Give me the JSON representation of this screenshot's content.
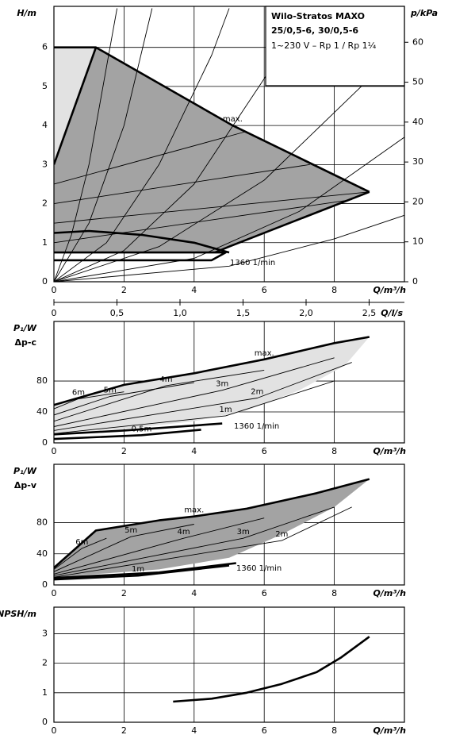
{
  "chart_data": [
    {
      "type": "line",
      "title": "Wilo-Stratos MAXO",
      "subtitle": "25/0,5-6, 30/0,5-6",
      "note": "1~230 V – Rp 1 / Rp 1¼",
      "ylabel": "H/m",
      "y2label": "p/kPa",
      "xlabel": "Q/m³/h",
      "x2label": "Q/l/s",
      "xlim": [
        0,
        10
      ],
      "xticks": [
        0,
        2,
        4,
        6,
        8
      ],
      "ylim": [
        0,
        7.05
      ],
      "yticks": [
        0,
        1,
        2,
        3,
        4,
        5,
        6
      ],
      "y2lim": [
        0,
        69
      ],
      "y2ticks": [
        0,
        10,
        20,
        30,
        40,
        50,
        60
      ],
      "x2lim": [
        0,
        2.78
      ],
      "x2ticks": [
        0,
        {
          "value": 0.5,
          "label": "0,5"
        },
        {
          "value": 1,
          "label": "1,0"
        },
        {
          "value": 1.5,
          "label": "1,5"
        },
        {
          "value": 2,
          "label": "2,0"
        },
        {
          "value": 2.5,
          "label": "2,5"
        }
      ],
      "grid": true,
      "annotations": [
        "1360 1/min"
      ],
      "series": [
        {
          "style": "area",
          "color": "#e2e2e2",
          "x": [
            0,
            1.2,
            0
          ],
          "values": [
            6,
            6,
            3
          ]
        },
        {
          "style": "area",
          "color": "#a3a3a3",
          "x": [
            0,
            1.2,
            5.1,
            9,
            7,
            5,
            4.6,
            0
          ],
          "values": [
            3,
            6,
            4.0,
            2.3,
            1.6,
            0.9,
            0.75,
            0.75
          ]
        },
        {
          "style": "thin",
          "color": "#000000",
          "x": [
            0,
            0.5,
            1,
            1.5,
            1.8
          ],
          "values": [
            0,
            1.2,
            3.0,
            5.5,
            7
          ]
        },
        {
          "style": "thin",
          "color": "#000000",
          "x": [
            0,
            1,
            2,
            2.8
          ],
          "values": [
            0,
            1.5,
            4,
            7
          ]
        },
        {
          "style": "thin",
          "color": "#000000",
          "x": [
            0,
            1.5,
            3,
            4.5,
            5
          ],
          "values": [
            0,
            1,
            3,
            5.8,
            7
          ]
        },
        {
          "style": "thin",
          "color": "#000000",
          "x": [
            0,
            2,
            4,
            6,
            7.2
          ],
          "values": [
            0,
            0.8,
            2.5,
            5.2,
            7
          ]
        },
        {
          "style": "thin",
          "color": "#000000",
          "x": [
            0,
            3,
            6,
            9,
            10
          ],
          "values": [
            0,
            0.9,
            2.6,
            5.2,
            6.3
          ]
        },
        {
          "style": "thin",
          "color": "#000000",
          "x": [
            0,
            4,
            7,
            10
          ],
          "values": [
            0,
            0.6,
            1.8,
            3.7
          ]
        },
        {
          "style": "thin",
          "color": "#000000",
          "x": [
            0,
            5,
            8,
            10
          ],
          "values": [
            0,
            0.4,
            1.1,
            1.7
          ]
        },
        {
          "style": "thin",
          "color": "#000000",
          "x": [
            0,
            5.5
          ],
          "values": [
            2.5,
            3.85
          ]
        },
        {
          "style": "thin",
          "color": "#000000",
          "x": [
            0,
            7.3
          ],
          "values": [
            2.0,
            3.0
          ]
        },
        {
          "style": "thin",
          "color": "#000000",
          "x": [
            0,
            9
          ],
          "values": [
            1.5,
            2.3
          ]
        },
        {
          "style": "thin",
          "color": "#000000",
          "x": [
            0,
            8.5
          ],
          "values": [
            1.0,
            2.1
          ]
        },
        {
          "style": "thick",
          "color": "#000000",
          "name": "max.",
          "x": [
            0,
            1.2,
            5.1,
            9
          ],
          "values": [
            6,
            6,
            4.0,
            2.3
          ]
        },
        {
          "style": "thick",
          "color": "#000000",
          "x": [
            0,
            1.2
          ],
          "values": [
            3,
            6
          ]
        },
        {
          "style": "thick",
          "color": "#000000",
          "x": [
            9,
            7,
            5,
            4.6
          ],
          "values": [
            2.3,
            1.6,
            0.9,
            0.75
          ]
        },
        {
          "style": "thick",
          "color": "#000000",
          "x": [
            0,
            4.9,
            4.5,
            0
          ],
          "values": [
            0.75,
            0.75,
            0.55,
            0.55
          ]
        },
        {
          "style": "thick",
          "color": "#000000",
          "x": [
            0,
            1,
            2.5,
            4,
            5
          ],
          "values": [
            1.25,
            1.3,
            1.2,
            1.0,
            0.75
          ]
        }
      ]
    },
    {
      "type": "line",
      "ylabel": "P₁/W",
      "ylabel2": "Δp-c",
      "xlabel": "Q/m³/h",
      "xlim": [
        0,
        10
      ],
      "xticks": [
        0,
        2,
        4,
        6,
        8
      ],
      "ylim": [
        0,
        157
      ],
      "yticks": [
        0,
        40,
        80
      ],
      "grid": true,
      "annotations": [
        "1360 1/min"
      ],
      "series": [
        {
          "style": "area",
          "color": "#e2e2e2",
          "x": [
            0,
            2,
            4,
            6,
            8,
            9,
            8.3,
            7,
            5.5,
            4,
            2,
            0
          ],
          "values": [
            49,
            75,
            90,
            108,
            129,
            137,
            100,
            68,
            42,
            28,
            18,
            13
          ]
        },
        {
          "style": "thin",
          "color": "#000000",
          "name": "6m",
          "x": [
            0,
            0.7,
            2
          ],
          "values": [
            44,
            57,
            66
          ]
        },
        {
          "style": "thin",
          "color": "#000000",
          "name": "5m",
          "x": [
            0,
            1.6,
            4
          ],
          "values": [
            36,
            60,
            78
          ]
        },
        {
          "style": "thin",
          "color": "#000000",
          "name": "4m",
          "x": [
            0,
            3.2,
            6
          ],
          "values": [
            28,
            74,
            94
          ]
        },
        {
          "style": "thin",
          "color": "#000000",
          "name": "3m",
          "x": [
            0,
            4.8,
            8
          ],
          "values": [
            21,
            68,
            110
          ]
        },
        {
          "style": "thin",
          "color": "#000000",
          "name": "2m",
          "x": [
            0,
            5.8,
            8.5
          ],
          "values": [
            16,
            58,
            104
          ]
        },
        {
          "style": "thin",
          "color": "#000000",
          "name": "1m",
          "x": [
            0,
            4.9,
            8
          ],
          "values": [
            12,
            35,
            80
          ]
        },
        {
          "style": "thick",
          "color": "#000000",
          "name": "max.",
          "x": [
            0,
            2,
            4,
            6,
            8,
            9
          ],
          "values": [
            49,
            75,
            90,
            108,
            129,
            137
          ]
        },
        {
          "style": "thick",
          "color": "#000000",
          "name": "0,5m",
          "x": [
            0,
            2.5,
            4.2
          ],
          "values": [
            5,
            10,
            17
          ]
        },
        {
          "style": "thick",
          "color": "#000000",
          "x": [
            0,
            2,
            4.8
          ],
          "values": [
            11,
            16,
            25
          ]
        }
      ]
    },
    {
      "type": "line",
      "ylabel": "P₁/W",
      "ylabel2": "Δp-v",
      "xlabel": "Q/m³/h",
      "xlim": [
        0,
        10
      ],
      "xticks": [
        0,
        2,
        4,
        6,
        8
      ],
      "ylim": [
        0,
        155
      ],
      "yticks": [
        0,
        40,
        80
      ],
      "grid": true,
      "annotations": [
        "1360 1/min"
      ],
      "series": [
        {
          "style": "area",
          "color": "#a3a3a3",
          "x": [
            0,
            1.2,
            3,
            5.5,
            7.5,
            9,
            8,
            6.5,
            5,
            3,
            0
          ],
          "values": [
            22,
            70,
            83,
            98,
            118,
            136,
            100,
            65,
            35,
            20,
            10
          ]
        },
        {
          "style": "thin",
          "color": "#000000",
          "name": "6m",
          "x": [
            0,
            0.8,
            1.5
          ],
          "values": [
            20,
            47,
            60
          ]
        },
        {
          "style": "thin",
          "color": "#000000",
          "name": "5m",
          "x": [
            0,
            2.2,
            4
          ],
          "values": [
            17,
            62,
            78
          ]
        },
        {
          "style": "thin",
          "color": "#000000",
          "name": "4m",
          "x": [
            0,
            3.7,
            6
          ],
          "values": [
            14,
            60,
            86
          ]
        },
        {
          "style": "thin",
          "color": "#000000",
          "name": "3m",
          "x": [
            0,
            5.4,
            8
          ],
          "values": [
            12,
            60,
            100
          ]
        },
        {
          "style": "thin",
          "color": "#000000",
          "name": "2m",
          "x": [
            0,
            6.5,
            8.5
          ],
          "values": [
            10,
            57,
            100
          ]
        },
        {
          "style": "thick",
          "color": "#000000",
          "name": "max.",
          "x": [
            0,
            1.2,
            3,
            4,
            5.5,
            7.5,
            9
          ],
          "values": [
            22,
            70,
            83,
            88,
            98,
            118,
            136
          ]
        },
        {
          "style": "thick",
          "color": "#000000",
          "name": "1m",
          "x": [
            0,
            2.4,
            5
          ],
          "values": [
            7,
            12,
            25
          ]
        },
        {
          "style": "thick",
          "color": "#000000",
          "x": [
            0,
            3,
            5.2
          ],
          "values": [
            9,
            16,
            28
          ]
        }
      ]
    },
    {
      "type": "line",
      "ylabel": "NPSH/m",
      "xlabel": "Q/m³/h",
      "xlim": [
        0,
        10
      ],
      "xticks": [
        0,
        2,
        4,
        6,
        8
      ],
      "ylim": [
        0,
        3.9
      ],
      "yticks": [
        0,
        1,
        2,
        3
      ],
      "grid": true,
      "series": [
        {
          "style": "thick",
          "color": "#000000",
          "x": [
            3.4,
            4.5,
            5.5,
            6.5,
            7.5,
            8.2,
            9
          ],
          "values": [
            0.7,
            0.8,
            1.0,
            1.3,
            1.7,
            2.2,
            2.9
          ]
        }
      ]
    }
  ]
}
